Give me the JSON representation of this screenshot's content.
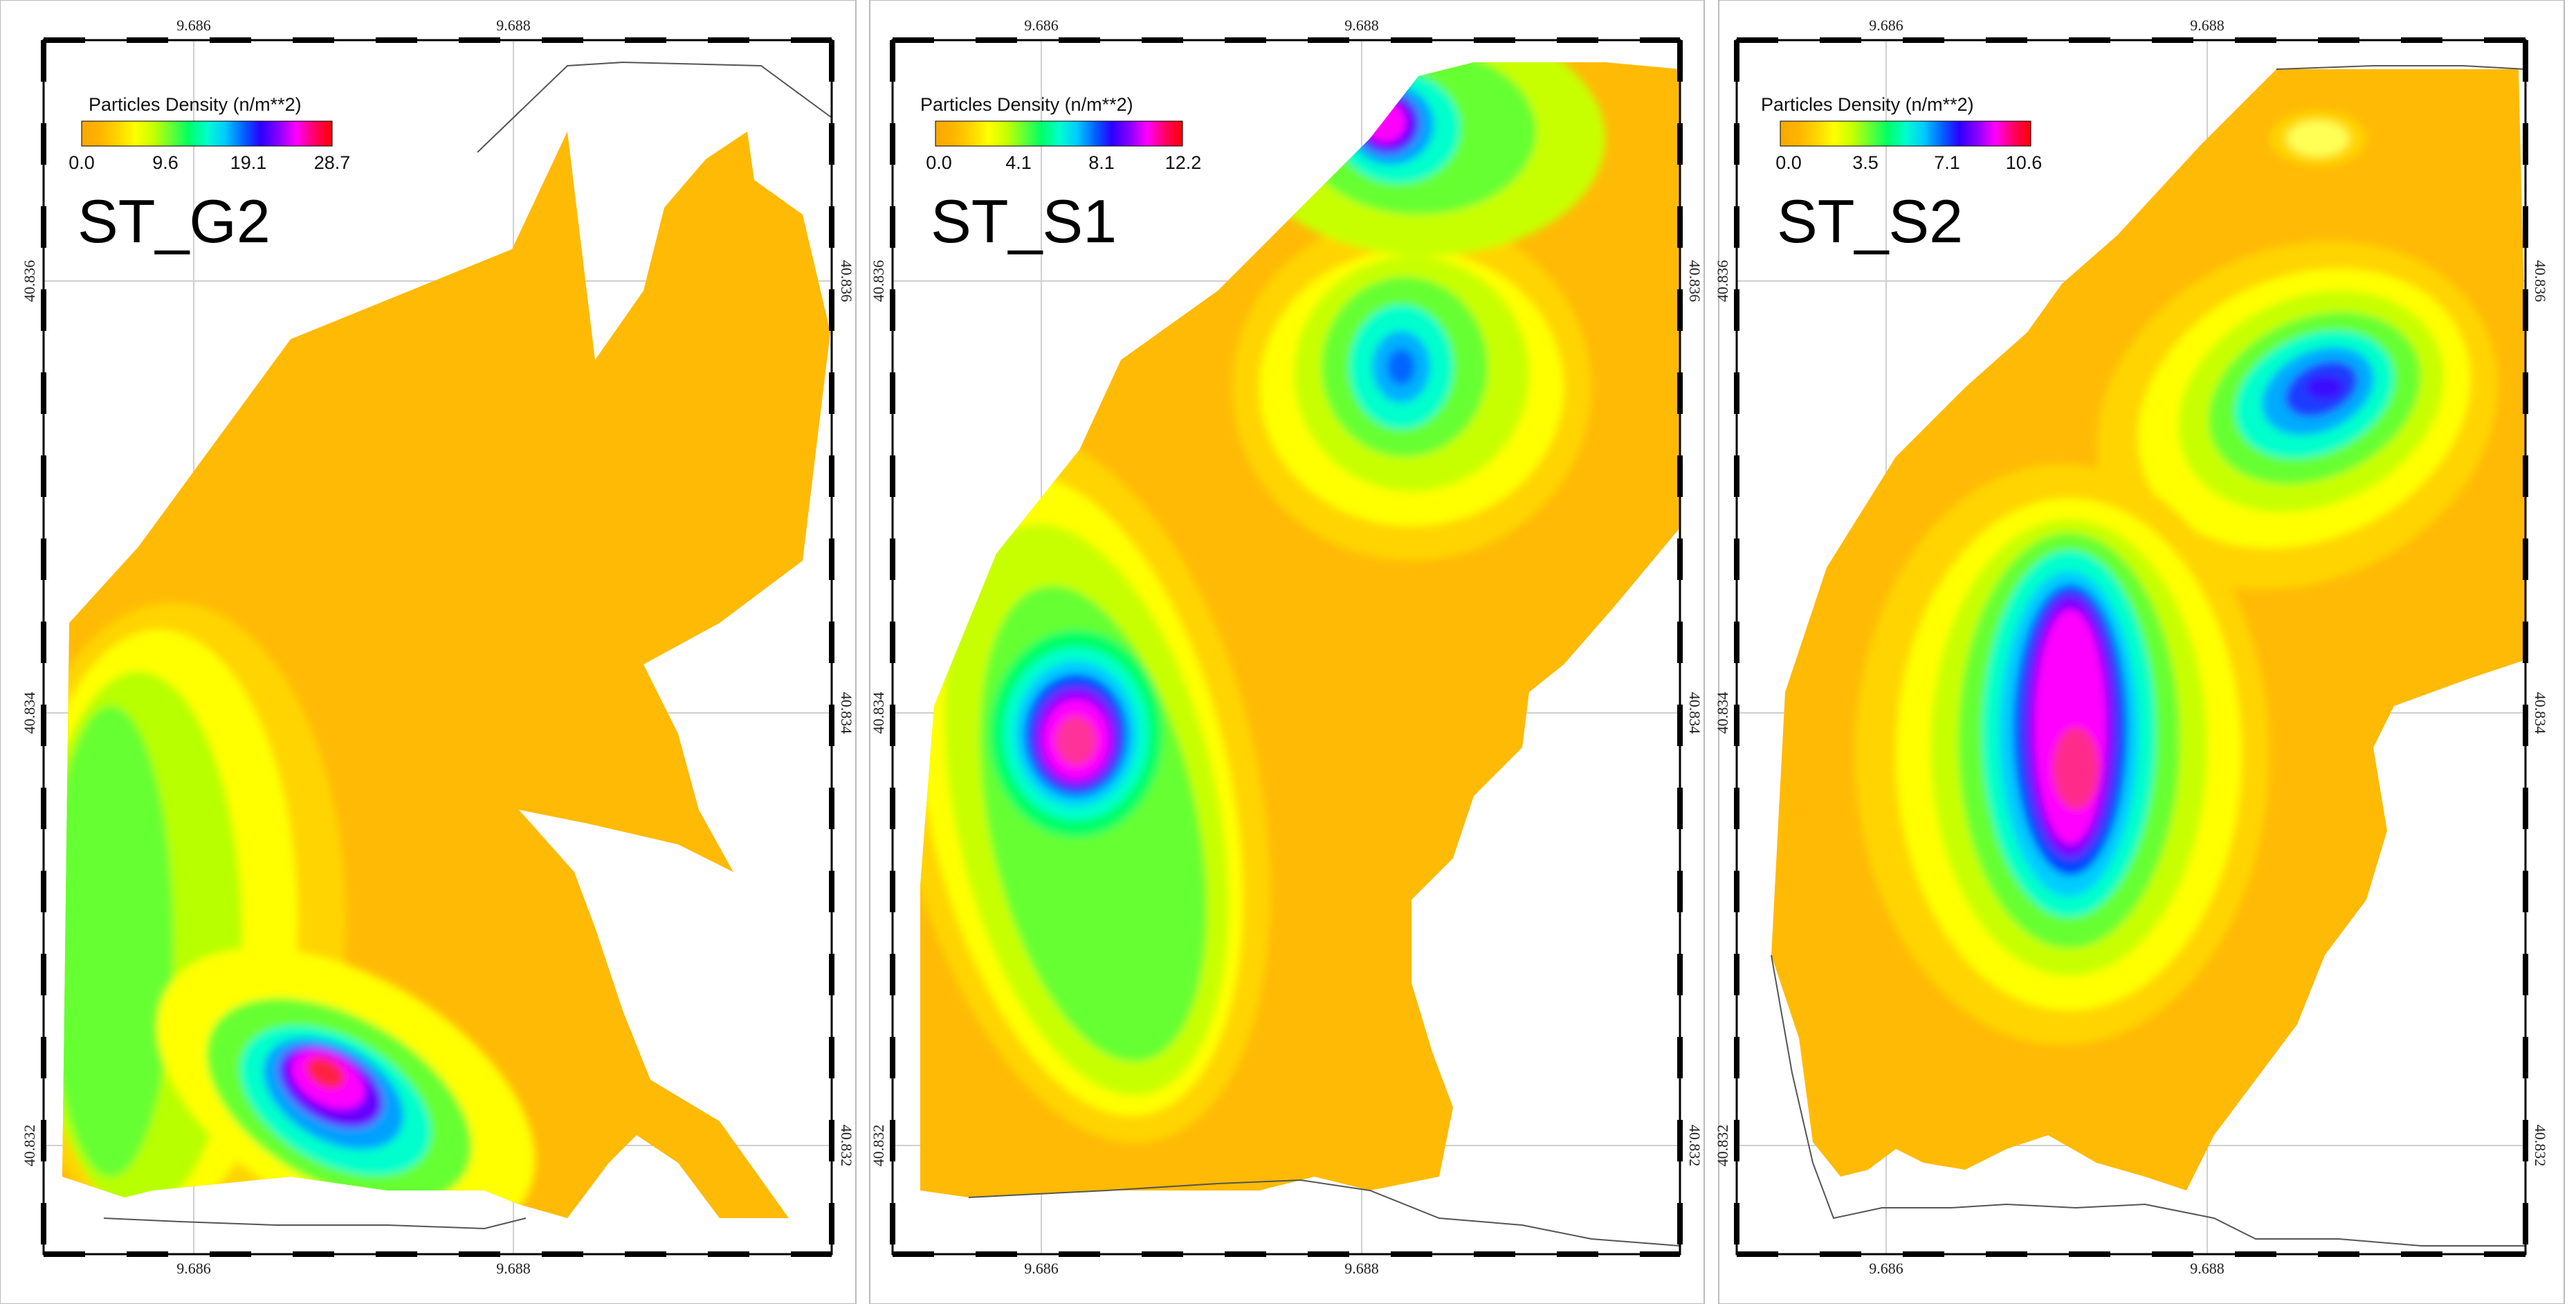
{
  "panels": [
    {
      "id": "st-g2",
      "title": "ST_G2",
      "legend_title": "Particles Density (n/m**2)",
      "legend_ticks": [
        "0.0",
        "9.6",
        "19.1",
        "28.7"
      ],
      "legend_max": 28.7,
      "x_ticks": [
        "9.686",
        "9.688"
      ],
      "y_ticks": [
        "40.836",
        "40.834",
        "40.832"
      ]
    },
    {
      "id": "st-s1",
      "title": "ST_S1",
      "legend_title": "Particles Density (n/m**2)",
      "legend_ticks": [
        "0.0",
        "4.1",
        "8.1",
        "12.2"
      ],
      "legend_max": 12.2,
      "x_ticks": [
        "9.686",
        "9.688"
      ],
      "y_ticks": [
        "40.836",
        "40.834",
        "40.832"
      ]
    },
    {
      "id": "st-s2",
      "title": "ST_S2",
      "legend_title": "Particles Density (n/m**2)",
      "legend_ticks": [
        "0.0",
        "3.5",
        "7.1",
        "10.6"
      ],
      "legend_max": 10.6,
      "x_ticks": [
        "9.686",
        "9.688"
      ],
      "y_ticks": [
        "40.836",
        "40.834",
        "40.832"
      ]
    }
  ],
  "colorscale": [
    "#f7a800",
    "#ffb400",
    "#ffd400",
    "#ffff00",
    "#c8ff00",
    "#66ff33",
    "#00ff66",
    "#00ffcc",
    "#00ccff",
    "#0066ff",
    "#2b00ff",
    "#8800ff",
    "#ff00ff",
    "#ff0066",
    "#ff0000"
  ],
  "colors": {
    "background": "#ffffaa",
    "base_fill": "#ffba05",
    "coast": "#555555",
    "grid": "#cfcfcf",
    "frame": "#000000"
  }
}
